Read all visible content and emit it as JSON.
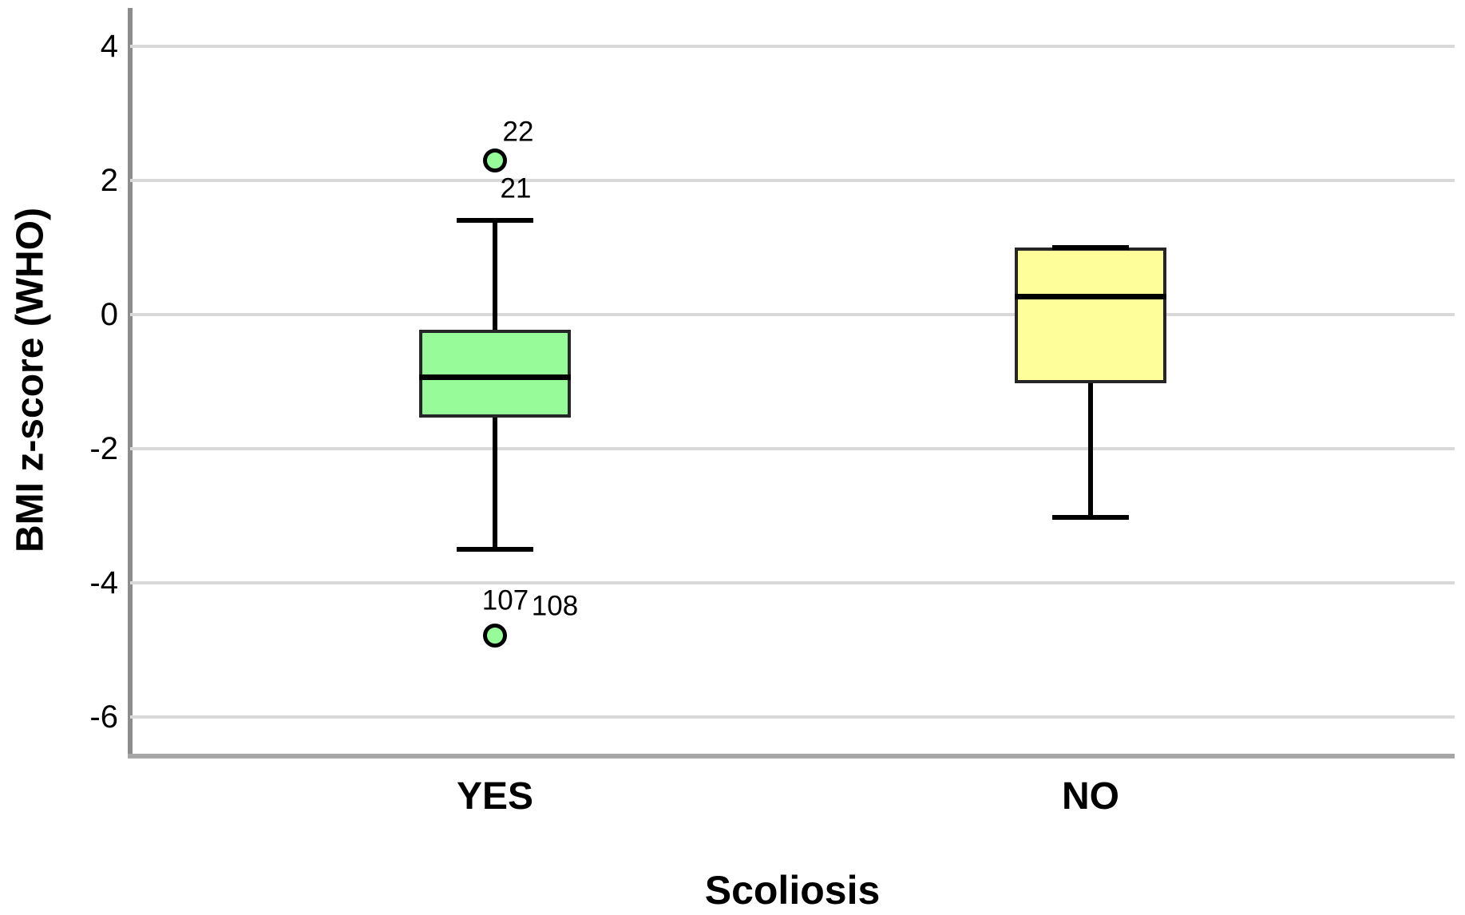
{
  "chart_data": {
    "type": "boxplot",
    "title": "",
    "xlabel": "Scoliosis",
    "ylabel": "BMI z-score (WHO)",
    "categories": [
      "YES",
      "NO"
    ],
    "yticks": [
      4,
      2,
      0,
      -2,
      -4,
      -6
    ],
    "ylim": [
      -6.6,
      4.6
    ],
    "grid": "horizontal",
    "background": "#ffffff",
    "gridline_color": "#d9d9d9",
    "y_axis_color": "#8c8c8c",
    "x_axis_color": "#a6a6a6",
    "box_border_color": "#262626",
    "groups": [
      {
        "category": "YES",
        "fill": "#98FB9A",
        "q1": -1.54,
        "median": -0.93,
        "q3": -0.23,
        "whisker_low": -3.5,
        "whisker_high": 1.4,
        "outliers": [
          {
            "value": 2.3,
            "labels": [
              {
                "text": "22",
                "dx": 29,
                "dy": -36
              },
              {
                "text": "21",
                "dx": 26,
                "dy": 35
              }
            ]
          },
          {
            "value": -4.78,
            "labels": [
              {
                "text": "107",
                "dx": 13,
                "dy": -44
              },
              {
                "text": "108",
                "dx": 75,
                "dy": -37
              }
            ]
          }
        ]
      },
      {
        "category": "NO",
        "fill": "#FEFE9A",
        "q1": -1.02,
        "median": 0.27,
        "q3": 1.0,
        "whisker_low": -3.02,
        "whisker_high": 1.0,
        "outliers": []
      }
    ]
  }
}
